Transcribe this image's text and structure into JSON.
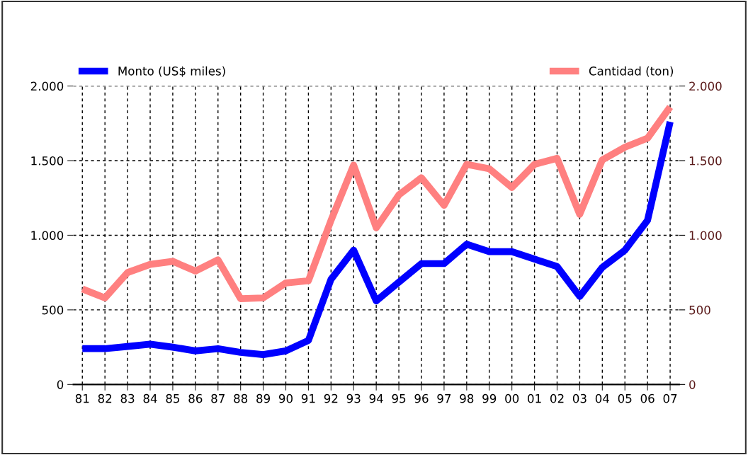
{
  "chart_data": {
    "type": "line",
    "categories": [
      "81",
      "82",
      "83",
      "84",
      "85",
      "86",
      "87",
      "88",
      "89",
      "90",
      "91",
      "92",
      "93",
      "94",
      "95",
      "96",
      "97",
      "98",
      "99",
      "00",
      "01",
      "02",
      "03",
      "04",
      "05",
      "06",
      "07"
    ],
    "series": [
      {
        "name": "Monto (US$ miles)",
        "color": "#0000ff",
        "axis": "y",
        "values": [
          240,
          240,
          255,
          270,
          250,
          225,
          240,
          215,
          200,
          225,
          295,
          705,
          900,
          560,
          685,
          810,
          810,
          940,
          890,
          890,
          840,
          790,
          590,
          785,
          900,
          1100,
          1760
        ]
      },
      {
        "name": "Cantidad (ton)",
        "color": "#ff8080",
        "axis": "y2",
        "values": [
          640,
          580,
          750,
          805,
          825,
          760,
          835,
          575,
          580,
          680,
          695,
          1100,
          1470,
          1050,
          1270,
          1385,
          1200,
          1475,
          1445,
          1320,
          1475,
          1515,
          1140,
          1505,
          1590,
          1650,
          1860
        ]
      }
    ],
    "ylim": [
      0,
      2000
    ],
    "yticks": [
      {
        "value": 0,
        "label": "0"
      },
      {
        "value": 500,
        "label": "500"
      },
      {
        "value": 1000,
        "label": "1.000"
      },
      {
        "value": 1500,
        "label": "1.500"
      },
      {
        "value": 2000,
        "label": "2.000"
      }
    ],
    "y2lim": [
      0,
      2000
    ],
    "y2ticks": [
      {
        "value": 0,
        "label": "0"
      },
      {
        "value": 500,
        "label": "500"
      },
      {
        "value": 1000,
        "label": "1.000"
      },
      {
        "value": 1500,
        "label": "1.500"
      },
      {
        "value": 2000,
        "label": "2.000"
      }
    ],
    "grid": true,
    "legend": "top",
    "marker": "none",
    "line_style": "solid"
  }
}
